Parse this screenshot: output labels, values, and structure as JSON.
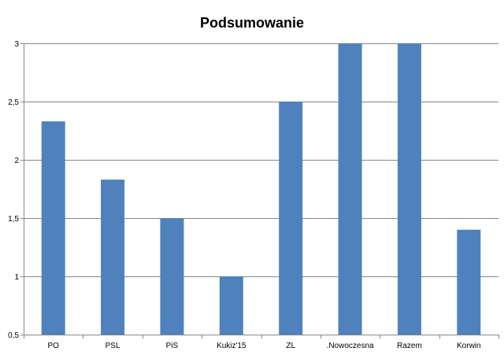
{
  "chart_data": {
    "type": "bar",
    "title": "Podsumowanie",
    "xlabel": "",
    "ylabel": "",
    "categories": [
      "PO",
      "PSL",
      "PiS",
      "Kukiz'15",
      "ZL",
      ".Nowoczesna",
      "Razem",
      "Korwin"
    ],
    "values": [
      2.33,
      1.83,
      1.5,
      1.0,
      2.5,
      3.0,
      3.0,
      1.4
    ],
    "ylim": [
      0.5,
      3
    ],
    "yticks": [
      0.5,
      1,
      1.5,
      2,
      2.5,
      3
    ],
    "ytick_labels": [
      "0,5",
      "1",
      "1,5",
      "2",
      "2,5",
      "3"
    ],
    "grid": true,
    "legend": "none",
    "colors": {
      "bar": "#4f81bd",
      "grid": "#878787",
      "axis": "#878787"
    }
  }
}
